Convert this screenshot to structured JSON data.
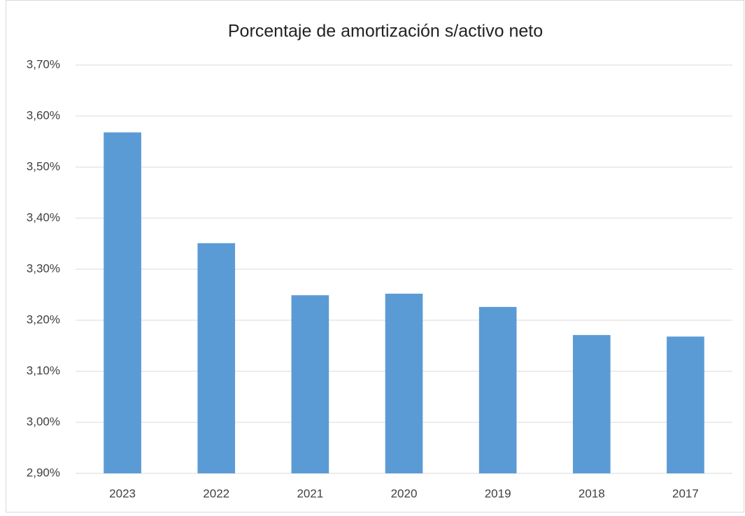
{
  "chart_data": {
    "type": "bar",
    "title": "Porcentaje de amortización s/activo neto",
    "categories": [
      "2023",
      "2022",
      "2021",
      "2020",
      "2019",
      "2018",
      "2017"
    ],
    "values": [
      3.568,
      3.351,
      3.249,
      3.252,
      3.226,
      3.171,
      3.168
    ],
    "color": "#5b9bd5",
    "ylim": [
      2.9,
      3.7
    ],
    "yticks": [
      {
        "value": 2.9,
        "label": "2,90%"
      },
      {
        "value": 3.0,
        "label": "3,00%"
      },
      {
        "value": 3.1,
        "label": "3,10%"
      },
      {
        "value": 3.2,
        "label": "3,20%"
      },
      {
        "value": 3.3,
        "label": "3,30%"
      },
      {
        "value": 3.4,
        "label": "3,40%"
      },
      {
        "value": 3.5,
        "label": "3,50%"
      },
      {
        "value": 3.6,
        "label": "3,60%"
      },
      {
        "value": 3.7,
        "label": "3,70%"
      }
    ],
    "grid": true
  }
}
